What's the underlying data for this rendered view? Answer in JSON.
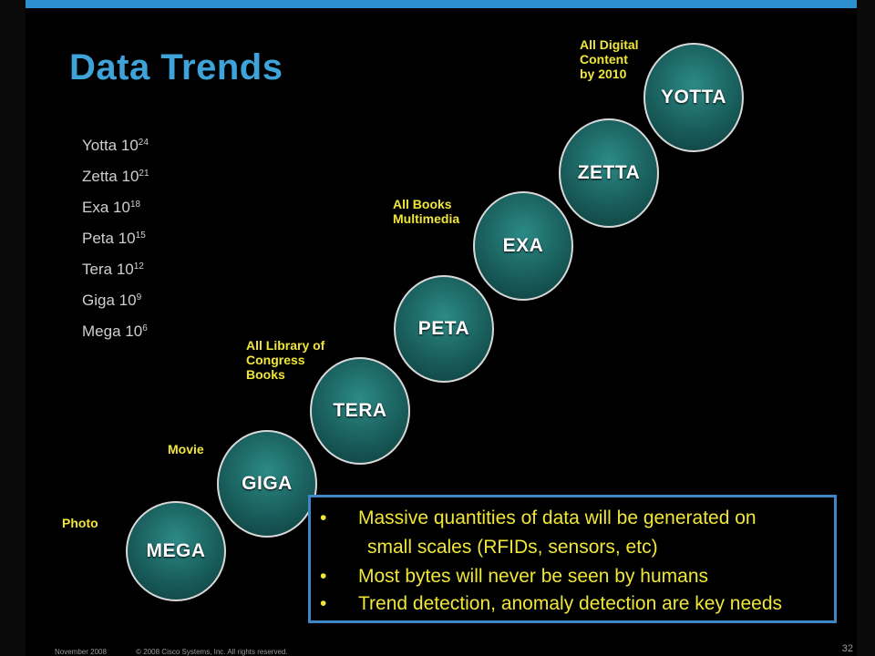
{
  "title": "Data Trends",
  "units": [
    {
      "name": "Yotta",
      "base": "10",
      "exp": "24"
    },
    {
      "name": "Zetta",
      "base": "10",
      "exp": "21"
    },
    {
      "name": "Exa",
      "base": "10",
      "exp": "18"
    },
    {
      "name": "Peta",
      "base": "10",
      "exp": "15"
    },
    {
      "name": "Tera",
      "base": "10",
      "exp": "12"
    },
    {
      "name": "Giga",
      "base": "10",
      "exp": "9"
    },
    {
      "name": "Mega",
      "base": "10",
      "exp": "6"
    }
  ],
  "circles": [
    "MEGA",
    "GIGA",
    "TERA",
    "PETA",
    "EXA",
    "ZETTA",
    "YOTTA"
  ],
  "annotations": {
    "photo": "Photo",
    "movie": "Movie",
    "library_1": "All Library of",
    "library_2": "Congress",
    "library_3": "Books",
    "books_1": "All Books",
    "books_2": "Multimedia",
    "digital_1": "All Digital",
    "digital_2": "Content",
    "digital_3": "by 2010"
  },
  "bullets": {
    "marker": "•",
    "b1_line1": "Massive quantities of data will be generated on",
    "b1_line2": "small scales (RFIDs, sensors, etc)",
    "b2": "Most bytes will never be seen by humans",
    "b3": "Trend detection, anomaly detection are key needs"
  },
  "footer": {
    "date": "November 2008",
    "copyright": "© 2008 Cisco Systems, Inc. All rights reserved.",
    "page": "32"
  },
  "colors": {
    "accent": "#3ea3d9",
    "annotation": "#f0e63a",
    "circle_fill": "#1c6563",
    "box_border": "#3f86c7"
  }
}
